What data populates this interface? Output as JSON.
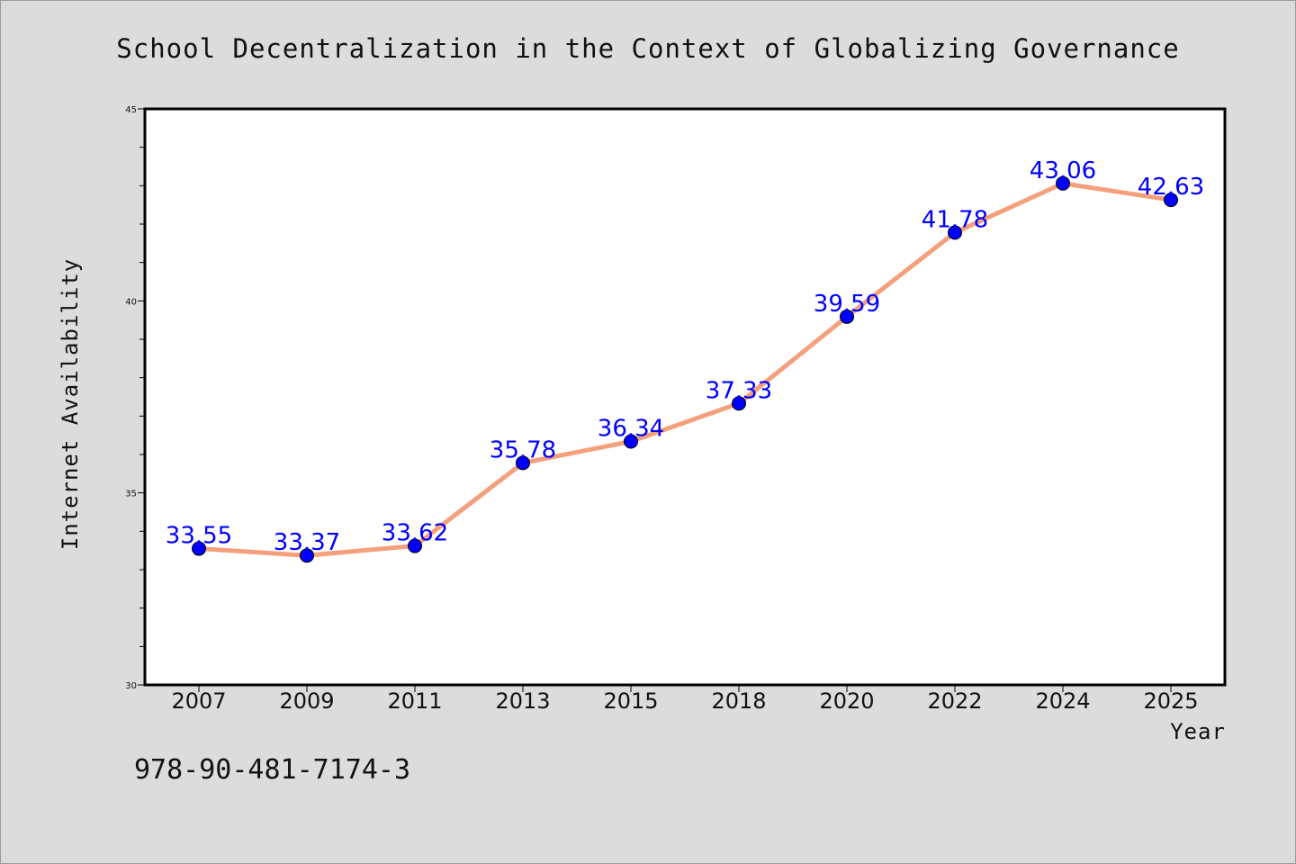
{
  "chart_data": {
    "type": "line",
    "title": "School Decentralization in the Context of Globalizing Governance",
    "xlabel": "Year",
    "ylabel": "Internet Availability",
    "categories": [
      "2007",
      "2009",
      "2011",
      "2013",
      "2015",
      "2018",
      "2020",
      "2022",
      "2024",
      "2025"
    ],
    "values": [
      33.55,
      33.37,
      33.62,
      35.78,
      36.34,
      37.33,
      39.59,
      41.78,
      43.06,
      42.63
    ],
    "data_labels": [
      "33.55",
      "33.37",
      "33.62",
      "35.78",
      "36.34",
      "37.33",
      "39.59",
      "41.78",
      "43.06",
      "42.63"
    ],
    "ylim": [
      30,
      45
    ],
    "yticks": [
      "30",
      "35",
      "40",
      "45"
    ],
    "grid": false,
    "line_color": "#f4a07c",
    "marker_color": "#0000ff",
    "label_color": "#0000ff"
  },
  "footer": {
    "code": "978-90-481-7174-3"
  }
}
